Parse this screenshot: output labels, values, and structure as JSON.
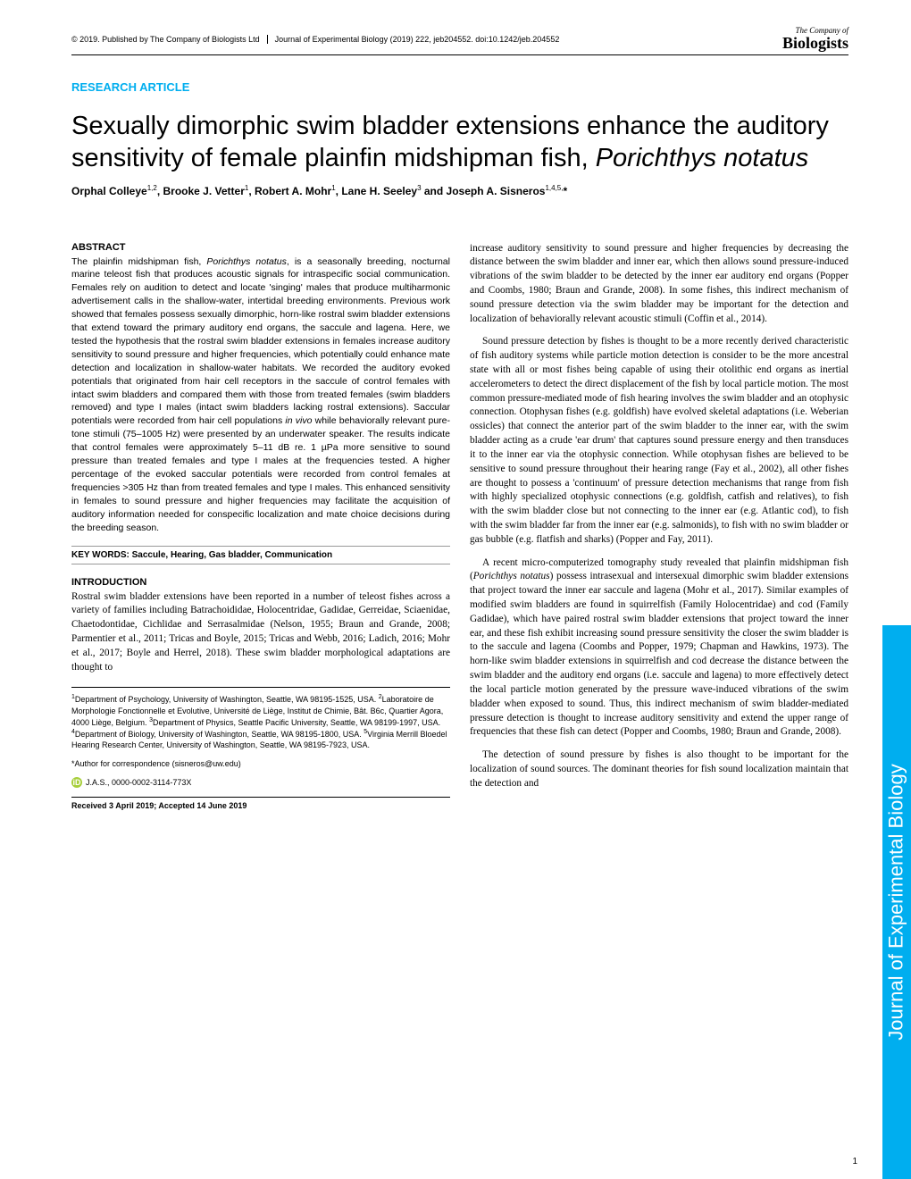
{
  "header": {
    "copyright": "© 2019. Published by The Company of Biologists Ltd",
    "journal_cite": "Journal of Experimental Biology (2019) 222, jeb204552. doi:10.1242/jeb.204552",
    "logo_top": "The Company of",
    "logo_bottom": "Biologists"
  },
  "article_type": "RESEARCH ARTICLE",
  "title_part1": "Sexually dimorphic swim bladder extensions enhance the auditory sensitivity of female plainfin midshipman fish, ",
  "title_italic": "Porichthys notatus",
  "authors_html": "Orphal Colleye<sup>1,2</sup>, Brooke J. Vetter<sup>1</sup>, Robert A. Mohr<sup>1</sup>, Lane H. Seeley<sup>3</sup> and Joseph A. Sisneros<sup>1,4,5,</sup>*",
  "abstract_heading": "ABSTRACT",
  "abstract_text": "The plainfin midshipman fish, <span class=\"italic\">Porichthys notatus</span>, is a seasonally breeding, nocturnal marine teleost fish that produces acoustic signals for intraspecific social communication. Females rely on audition to detect and locate 'singing' males that produce multiharmonic advertisement calls in the shallow-water, intertidal breeding environments. Previous work showed that females possess sexually dimorphic, horn-like rostral swim bladder extensions that extend toward the primary auditory end organs, the saccule and lagena. Here, we tested the hypothesis that the rostral swim bladder extensions in females increase auditory sensitivity to sound pressure and higher frequencies, which potentially could enhance mate detection and localization in shallow-water habitats. We recorded the auditory evoked potentials that originated from hair cell receptors in the saccule of control females with intact swim bladders and compared them with those from treated females (swim bladders removed) and type I males (intact swim bladders lacking rostral extensions). Saccular potentials were recorded from hair cell populations <span class=\"italic\">in vivo</span> while behaviorally relevant pure-tone stimuli (75–1005 Hz) were presented by an underwater speaker. The results indicate that control females were approximately 5–11 dB re. 1 µPa more sensitive to sound pressure than treated females and type I males at the frequencies tested. A higher percentage of the evoked saccular potentials were recorded from control females at frequencies >305 Hz than from treated females and type I males. This enhanced sensitivity in females to sound pressure and higher frequencies may facilitate the acquisition of auditory information needed for conspecific localization and mate choice decisions during the breeding season.",
  "keywords": "KEY WORDS: Saccule, Hearing, Gas bladder, Communication",
  "intro_heading": "INTRODUCTION",
  "intro_p1": "Rostral swim bladder extensions have been reported in a number of teleost fishes across a variety of families including Batrachoididae, Holocentridae, Gadidae, Gerreidae, Sciaenidae, Chaetodontidae, Cichlidae and Serrasalmidae (Nelson, 1955; Braun and Grande, 2008; Parmentier et al., 2011; Tricas and Boyle, 2015; Tricas and Webb, 2016; Ladich, 2016; Mohr et al., 2017; Boyle and Herrel, 2018). These swim bladder morphological adaptations are thought to",
  "affiliations": "<sup>1</sup>Department of Psychology, University of Washington, Seattle, WA 98195-1525, USA. <sup>2</sup>Laboratoire de Morphologie Fonctionnelle et Evolutive, Université de Liège, Institut de Chimie, Bât. B6c, Quartier Agora, 4000 Liège, Belgium. <sup>3</sup>Department of Physics, Seattle Pacific University, Seattle, WA 98199-1997, USA. <sup>4</sup>Department of Biology, University of Washington, Seattle, WA 98195-1800, USA. <sup>5</sup>Virginia Merrill Bloedel Hearing Research Center, University of Washington, Seattle, WA 98195-7923, USA.",
  "correspondence": "*Author for correspondence (sisneros@uw.edu)",
  "orcid": "J.A.S., 0000-0002-3114-773X",
  "received": "Received 3 April 2019; Accepted 14 June 2019",
  "col2_p1": "increase auditory sensitivity to sound pressure and higher frequencies by decreasing the distance between the swim bladder and inner ear, which then allows sound pressure-induced vibrations of the swim bladder to be detected by the inner ear auditory end organs (Popper and Coombs, 1980; Braun and Grande, 2008). In some fishes, this indirect mechanism of sound pressure detection via the swim bladder may be important for the detection and localization of behaviorally relevant acoustic stimuli (Coffin et al., 2014).",
  "col2_p2": "Sound pressure detection by fishes is thought to be a more recently derived characteristic of fish auditory systems while particle motion detection is consider to be the more ancestral state with all or most fishes being capable of using their otolithic end organs as inertial accelerometers to detect the direct displacement of the fish by local particle motion. The most common pressure-mediated mode of fish hearing involves the swim bladder and an otophysic connection. Otophysan fishes (e.g. goldfish) have evolved skeletal adaptations (i.e. Weberian ossicles) that connect the anterior part of the swim bladder to the inner ear, with the swim bladder acting as a crude 'ear drum' that captures sound pressure energy and then transduces it to the inner ear via the otophysic connection. While otophysan fishes are believed to be sensitive to sound pressure throughout their hearing range (Fay et al., 2002), all other fishes are thought to possess a 'continuum' of pressure detection mechanisms that range from fish with highly specialized otophysic connections (e.g. goldfish, catfish and relatives), to fish with the swim bladder close but not connecting to the inner ear (e.g. Atlantic cod), to fish with the swim bladder far from the inner ear (e.g. salmonids), to fish with no swim bladder or gas bubble (e.g. flatfish and sharks) (Popper and Fay, 2011).",
  "col2_p3": "A recent micro-computerized tomography study revealed that plainfin midshipman fish (<span class=\"italic\">Porichthys notatus</span>) possess intrasexual and intersexual dimorphic swim bladder extensions that project toward the inner ear saccule and lagena (Mohr et al., 2017). Similar examples of modified swim bladders are found in squirrelfish (Family Holocentridae) and cod (Family Gadidae), which have paired rostral swim bladder extensions that project toward the inner ear, and these fish exhibit increasing sound pressure sensitivity the closer the swim bladder is to the saccule and lagena (Coombs and Popper, 1979; Chapman and Hawkins, 1973). The horn-like swim bladder extensions in squirrelfish and cod decrease the distance between the swim bladder and the auditory end organs (i.e. saccule and lagena) to more effectively detect the local particle motion generated by the pressure wave-induced vibrations of the swim bladder when exposed to sound. Thus, this indirect mechanism of swim bladder-mediated pressure detection is thought to increase auditory sensitivity and extend the upper range of frequencies that these fish can detect (Popper and Coombs, 1980; Braun and Grande, 2008).",
  "col2_p4": "The detection of sound pressure by fishes is also thought to be important for the localization of sound sources. The dominant theories for fish sound localization maintain that the detection and",
  "side_tab": "Journal of Experimental Biology",
  "page_number": "1",
  "colors": {
    "accent": "#00aeef",
    "orcid_green": "#a6ce39",
    "text": "#000000",
    "background": "#ffffff"
  }
}
